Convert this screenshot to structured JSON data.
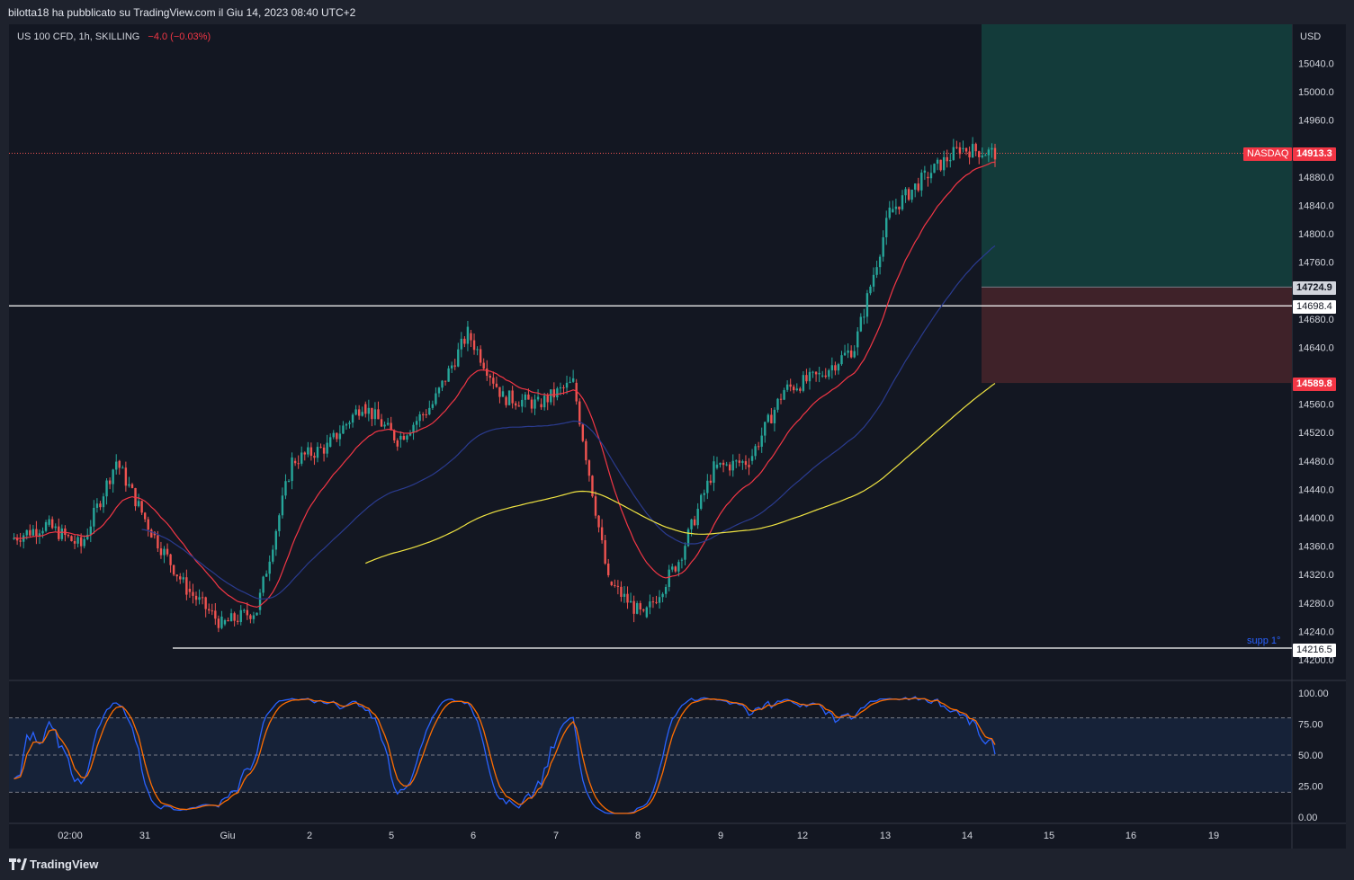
{
  "header": {
    "published_by": "bilotta18 ha pubblicato su TradingView.com il Giu 14, 2023 08:40 UTC+2"
  },
  "legend": {
    "symbol": "US 100 CFD, 1h, SKILLING",
    "change": "−4.0 (−0.03%)"
  },
  "price_axis": {
    "currency": "USD",
    "ticks": [
      "15040.0",
      "15000.0",
      "14960.0",
      "14880.0",
      "14840.0",
      "14800.0",
      "14760.0",
      "14680.0",
      "14640.0",
      "14560.0",
      "14520.0",
      "14480.0",
      "14440.0",
      "14400.0",
      "14360.0",
      "14320.0",
      "14280.0",
      "14240.0",
      "14200.0"
    ]
  },
  "price_tags": {
    "nasdaq_label": "NASDAQ",
    "last_price": "14913.3",
    "target_price": "14724.9",
    "resistance_price": "14698.4",
    "stop_price": "14589.8",
    "support_price": "14216.5"
  },
  "annotations": {
    "support_label": "supp 1°"
  },
  "oscillator": {
    "ticks": [
      "100.00",
      "75.00",
      "50.00",
      "25.00",
      "0.00"
    ]
  },
  "time_axis": {
    "labels": [
      "02:00",
      "31",
      "Giu",
      "2",
      "5",
      "6",
      "7",
      "8",
      "9",
      "12",
      "13",
      "14",
      "15",
      "16",
      "19"
    ]
  },
  "footer": {
    "brand": "TradingView"
  },
  "colors": {
    "background": "#131722",
    "up_candle": "#26a69a",
    "down_candle": "#ef5350",
    "ema_fast": "#f23645",
    "ema_mid": "#2a3b8f",
    "ema_slow": "#f0e442",
    "stoch_k": "#2962ff",
    "stoch_d": "#ff6d00",
    "target_zone": "#133b3a",
    "stop_zone": "#3f2229"
  },
  "chart_data": {
    "type": "candlestick",
    "symbol": "US 100 CFD",
    "timeframe": "1h",
    "y_range": [
      14190,
      15080
    ],
    "last_price": 14913.3,
    "horizontal_levels": [
      14698.4,
      14216.5
    ],
    "position": {
      "target": 14724.9,
      "entry_zone_top": 14724.9,
      "stop": 14589.8
    },
    "approx_close_path": [
      {
        "x": "30 May",
        "y": 14370
      },
      {
        "x": "30 May",
        "y": 14390
      },
      {
        "x": "30 May",
        "y": 14360
      },
      {
        "x": "31 May",
        "y": 14480
      },
      {
        "x": "31 May",
        "y": 14380
      },
      {
        "x": "1 Jun",
        "y": 14300
      },
      {
        "x": "1 Jun",
        "y": 14250
      },
      {
        "x": "1 Jun",
        "y": 14270
      },
      {
        "x": "2 Jun",
        "y": 14480
      },
      {
        "x": "2 Jun",
        "y": 14500
      },
      {
        "x": "5 Jun",
        "y": 14560
      },
      {
        "x": "5 Jun",
        "y": 14510
      },
      {
        "x": "5 Jun",
        "y": 14560
      },
      {
        "x": "6 Jun",
        "y": 14660
      },
      {
        "x": "6 Jun",
        "y": 14570
      },
      {
        "x": "7 Jun",
        "y": 14560
      },
      {
        "x": "7 Jun",
        "y": 14590
      },
      {
        "x": "8 Jun",
        "y": 14310
      },
      {
        "x": "8 Jun",
        "y": 14260
      },
      {
        "x": "8 Jun",
        "y": 14340
      },
      {
        "x": "9 Jun",
        "y": 14470
      },
      {
        "x": "9 Jun",
        "y": 14480
      },
      {
        "x": "12 Jun",
        "y": 14580
      },
      {
        "x": "12 Jun",
        "y": 14600
      },
      {
        "x": "12 Jun",
        "y": 14640
      },
      {
        "x": "13 Jun",
        "y": 14830
      },
      {
        "x": "13 Jun",
        "y": 14880
      },
      {
        "x": "14 Jun",
        "y": 14920
      },
      {
        "x": "14 Jun",
        "y": 14913.3
      }
    ],
    "oscillator_range": [
      0,
      100
    ],
    "oscillator_bands": [
      20,
      50,
      80
    ]
  }
}
